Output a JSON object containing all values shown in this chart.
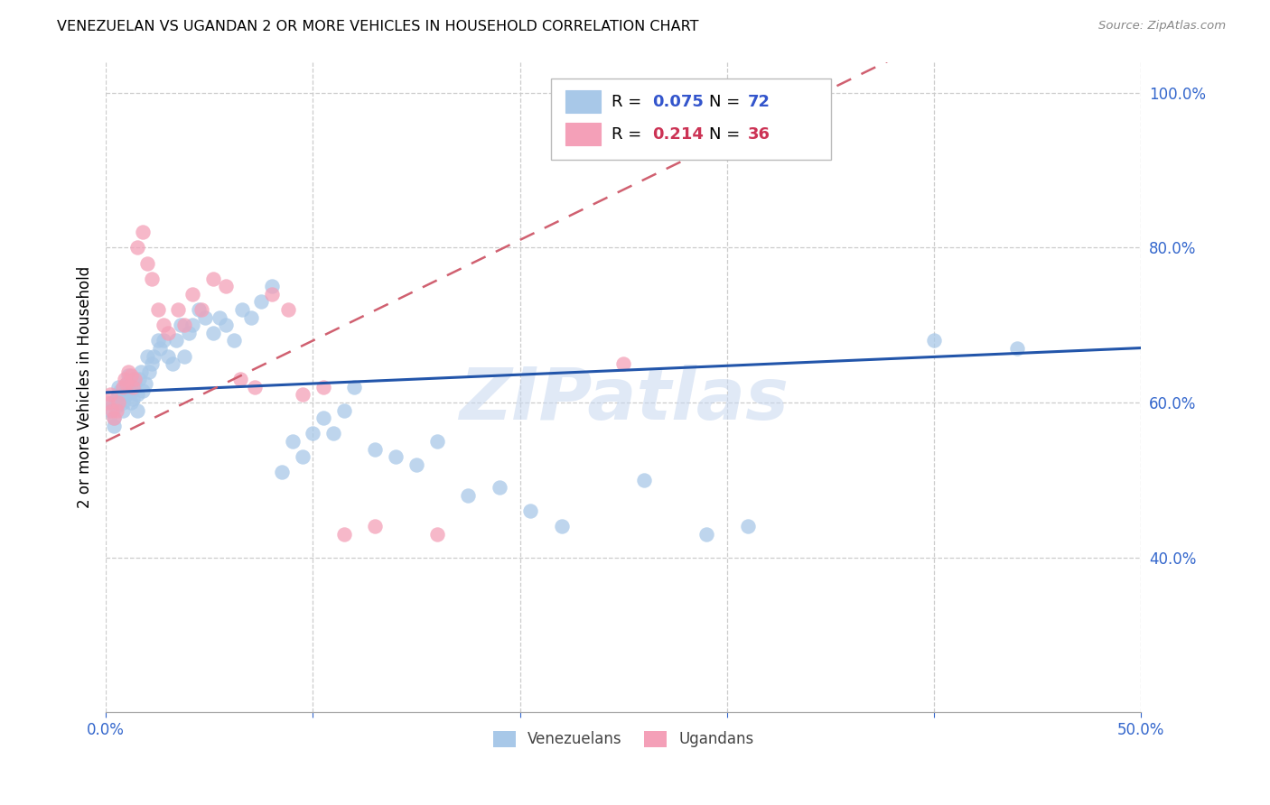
{
  "title": "VENEZUELAN VS UGANDAN 2 OR MORE VEHICLES IN HOUSEHOLD CORRELATION CHART",
  "source": "Source: ZipAtlas.com",
  "ylabel": "2 or more Vehicles in Household",
  "xlim": [
    0.0,
    0.5
  ],
  "ylim": [
    0.2,
    1.04
  ],
  "x_ticks": [
    0.0,
    0.1,
    0.2,
    0.3,
    0.4,
    0.5
  ],
  "x_tick_labels": [
    "0.0%",
    "",
    "",
    "",
    "",
    "50.0%"
  ],
  "y_ticks": [
    0.4,
    0.6,
    0.8,
    1.0
  ],
  "y_tick_labels": [
    "40.0%",
    "60.0%",
    "80.0%",
    "100.0%"
  ],
  "blue_color": "#a8c8e8",
  "pink_color": "#f4a0b8",
  "trend_blue_color": "#2255aa",
  "trend_pink_color": "#d06070",
  "watermark": "ZIPatlas",
  "venezuelan_x": [
    0.002,
    0.003,
    0.004,
    0.004,
    0.005,
    0.005,
    0.006,
    0.006,
    0.007,
    0.008,
    0.008,
    0.01,
    0.01,
    0.011,
    0.011,
    0.012,
    0.012,
    0.013,
    0.013,
    0.014,
    0.015,
    0.015,
    0.016,
    0.017,
    0.018,
    0.019,
    0.02,
    0.021,
    0.022,
    0.023,
    0.025,
    0.026,
    0.028,
    0.03,
    0.032,
    0.034,
    0.036,
    0.038,
    0.04,
    0.042,
    0.045,
    0.048,
    0.052,
    0.055,
    0.058,
    0.062,
    0.066,
    0.07,
    0.075,
    0.08,
    0.085,
    0.09,
    0.095,
    0.1,
    0.105,
    0.11,
    0.115,
    0.12,
    0.13,
    0.14,
    0.15,
    0.16,
    0.175,
    0.19,
    0.205,
    0.22,
    0.26,
    0.29,
    0.31,
    0.4,
    0.44
  ],
  "venezuelan_y": [
    0.59,
    0.6,
    0.57,
    0.58,
    0.595,
    0.605,
    0.61,
    0.62,
    0.615,
    0.59,
    0.6,
    0.61,
    0.625,
    0.62,
    0.635,
    0.615,
    0.6,
    0.605,
    0.615,
    0.625,
    0.59,
    0.61,
    0.63,
    0.64,
    0.615,
    0.625,
    0.66,
    0.64,
    0.65,
    0.66,
    0.68,
    0.67,
    0.68,
    0.66,
    0.65,
    0.68,
    0.7,
    0.66,
    0.69,
    0.7,
    0.72,
    0.71,
    0.69,
    0.71,
    0.7,
    0.68,
    0.72,
    0.71,
    0.73,
    0.75,
    0.51,
    0.55,
    0.53,
    0.56,
    0.58,
    0.56,
    0.59,
    0.62,
    0.54,
    0.53,
    0.52,
    0.55,
    0.48,
    0.49,
    0.46,
    0.44,
    0.5,
    0.43,
    0.44,
    0.68,
    0.67
  ],
  "ugandan_x": [
    0.001,
    0.002,
    0.003,
    0.004,
    0.005,
    0.006,
    0.008,
    0.009,
    0.01,
    0.011,
    0.012,
    0.013,
    0.014,
    0.015,
    0.018,
    0.02,
    0.022,
    0.025,
    0.028,
    0.03,
    0.035,
    0.038,
    0.042,
    0.046,
    0.052,
    0.058,
    0.065,
    0.072,
    0.08,
    0.088,
    0.095,
    0.105,
    0.115,
    0.13,
    0.16,
    0.25
  ],
  "ugandan_y": [
    0.6,
    0.61,
    0.59,
    0.58,
    0.59,
    0.6,
    0.62,
    0.63,
    0.625,
    0.64,
    0.635,
    0.62,
    0.63,
    0.8,
    0.82,
    0.78,
    0.76,
    0.72,
    0.7,
    0.69,
    0.72,
    0.7,
    0.74,
    0.72,
    0.76,
    0.75,
    0.63,
    0.62,
    0.74,
    0.72,
    0.61,
    0.62,
    0.43,
    0.44,
    0.43,
    0.65
  ]
}
